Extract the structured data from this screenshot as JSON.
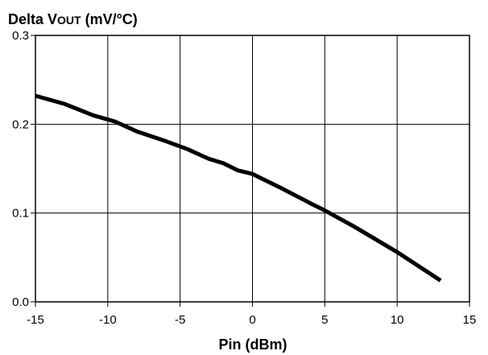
{
  "chart_data": {
    "type": "line",
    "ylabel_prefix": "Delta V",
    "ylabel_sub": "OUT",
    "ylabel_suffix": " (mV/°C)",
    "xlabel": "Pin (dBm)",
    "xlim": [
      -15,
      15
    ],
    "ylim": [
      0,
      0.3
    ],
    "x_ticks": [
      -15,
      -10,
      -5,
      0,
      5,
      10,
      15
    ],
    "y_ticks": [
      0.0,
      0.1,
      0.2,
      0.3
    ],
    "x_tick_labels": [
      "-15",
      "-10",
      "-5",
      "0",
      "5",
      "10",
      "15"
    ],
    "y_tick_labels": [
      "0.0",
      "0.1",
      "0.2",
      "0.3"
    ],
    "grid": true,
    "line_color": "#000000",
    "series": [
      {
        "x": [
          -15,
          -13,
          -11,
          -9.5,
          -8,
          -6,
          -4.5,
          -3,
          -2,
          -1,
          0,
          2,
          4,
          5,
          7,
          10,
          13
        ],
        "y": [
          0.232,
          0.223,
          0.21,
          0.203,
          0.192,
          0.181,
          0.172,
          0.161,
          0.156,
          0.148,
          0.144,
          0.128,
          0.111,
          0.103,
          0.085,
          0.056,
          0.024
        ]
      }
    ]
  }
}
